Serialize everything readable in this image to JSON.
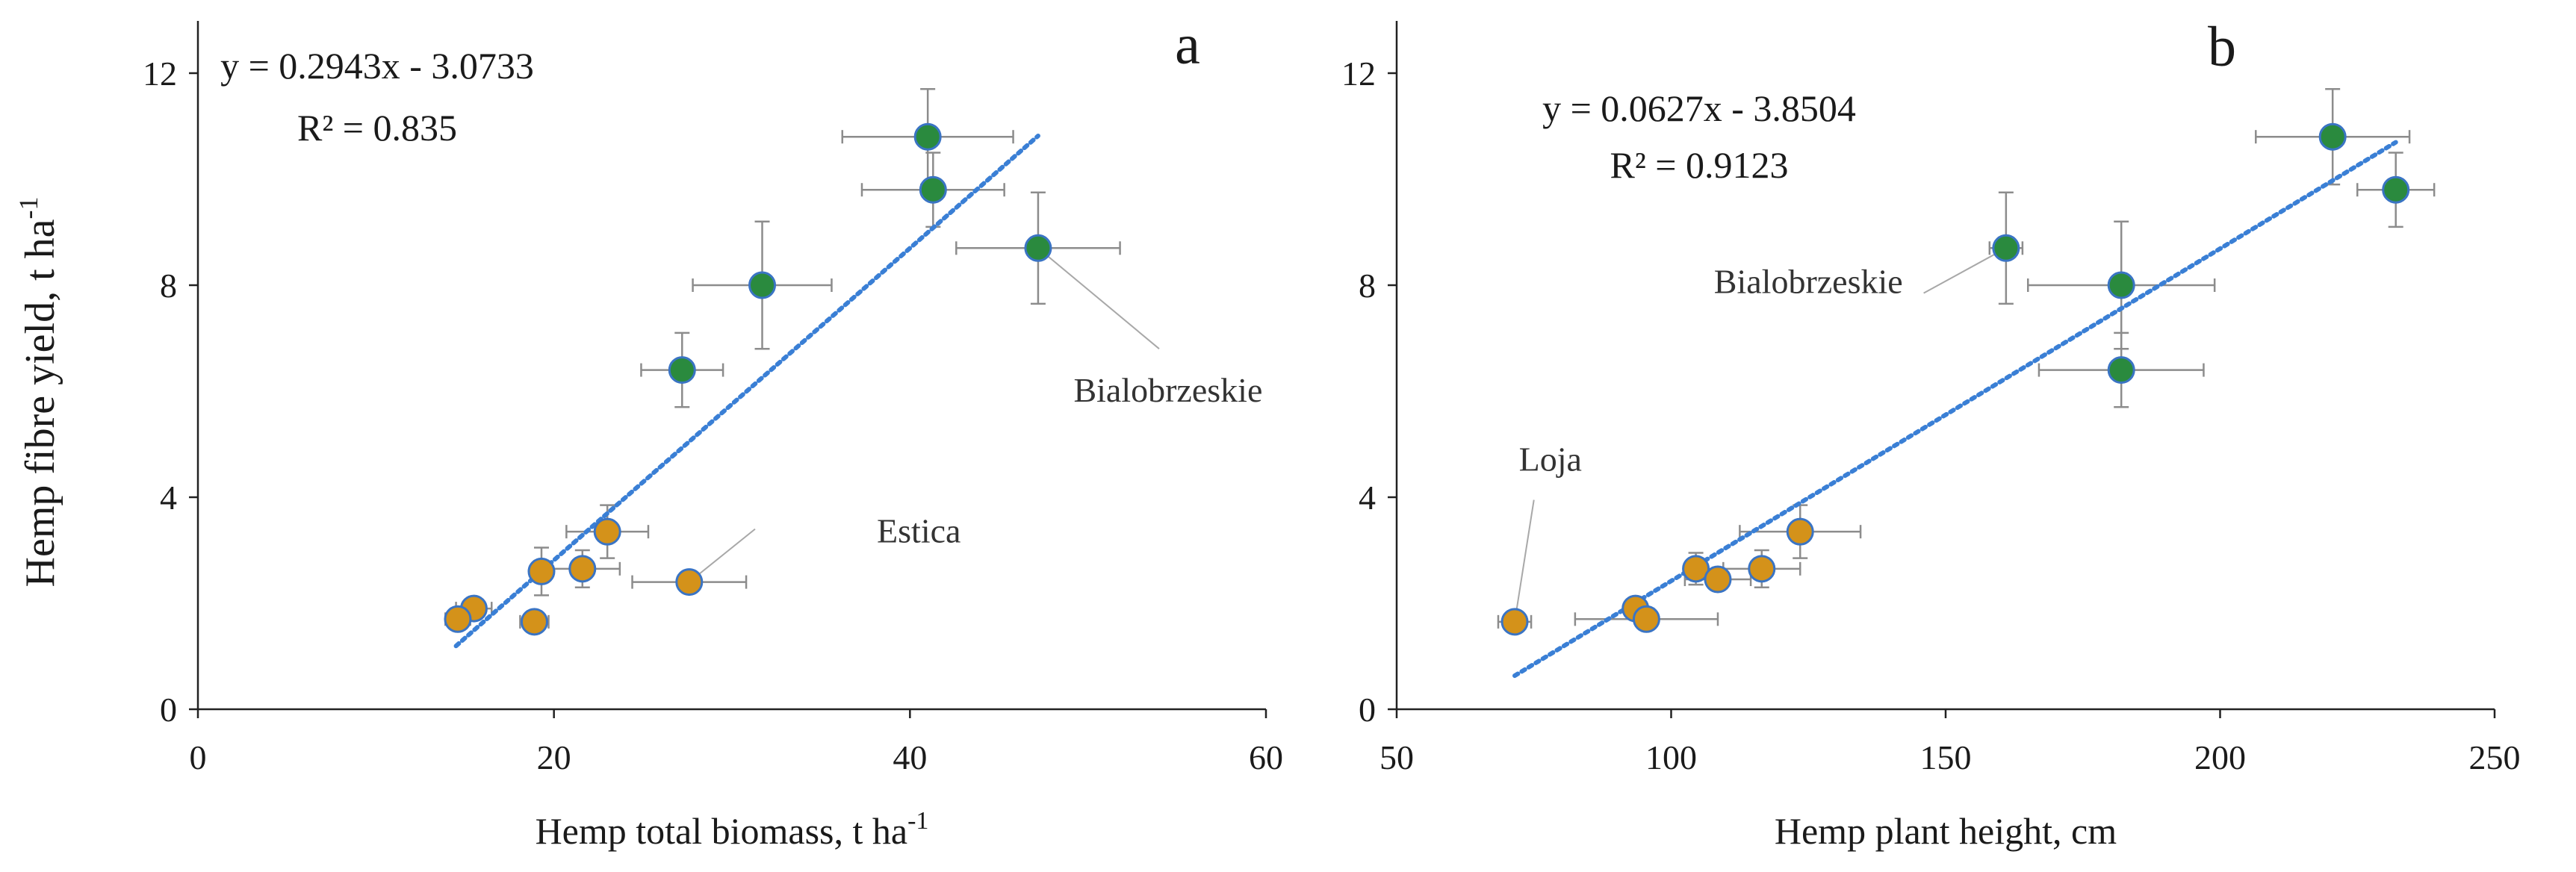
{
  "figure": {
    "ylabel_main": "Hemp fibre yield, t ha",
    "ylabel_sup": "-1"
  },
  "colors": {
    "green_marker": "#2a8a3e",
    "orange_marker": "#d4921a",
    "marker_edge": "#3a74c4",
    "trendline": "#3a7fd5",
    "errorbar": "#8c8c8c",
    "axis": "#222222",
    "annotation_line": "#a8a8a8"
  },
  "chart_data": [
    {
      "id": "a",
      "type": "scatter",
      "panel_letter": "a",
      "xlabel": "Hemp total biomass, t ha",
      "xlabel_sup": "-1",
      "ylabel": "Hemp fibre yield, t ha-1",
      "xlim": [
        0,
        60
      ],
      "ylim": [
        0,
        13
      ],
      "xticks": [
        "0",
        "20",
        "40",
        "60"
      ],
      "yticks": [
        "0",
        "4",
        "8",
        "12"
      ],
      "xtick_values": [
        0,
        20,
        40,
        60
      ],
      "ytick_values": [
        0,
        4,
        8,
        12
      ],
      "equation": "y = 0.2943x - 3.0733",
      "r2_label": "R² = 0.835",
      "trendline": {
        "slope": 0.2943,
        "intercept": -3.0733,
        "x_range": [
          14.5,
          47.2
        ]
      },
      "points": [
        {
          "x": 41.0,
          "y": 10.8,
          "xerr": 4.8,
          "yerr": 0.9,
          "group": "green"
        },
        {
          "x": 41.3,
          "y": 9.8,
          "xerr": 4.0,
          "yerr": 0.7,
          "group": "green"
        },
        {
          "x": 47.2,
          "y": 8.7,
          "xerr": 4.6,
          "yerr": 1.05,
          "group": "green"
        },
        {
          "x": 31.7,
          "y": 8.0,
          "xerr": 3.9,
          "yerr": 1.2,
          "group": "green"
        },
        {
          "x": 27.2,
          "y": 6.4,
          "xerr": 2.3,
          "yerr": 0.7,
          "group": "green"
        },
        {
          "x": 23.0,
          "y": 3.35,
          "xerr": 2.3,
          "yerr": 0.5,
          "group": "orange"
        },
        {
          "x": 21.6,
          "y": 2.65,
          "xerr": 2.1,
          "yerr": 0.35,
          "group": "orange"
        },
        {
          "x": 19.3,
          "y": 2.6,
          "xerr": 0.6,
          "yerr": 0.45,
          "group": "orange"
        },
        {
          "x": 27.6,
          "y": 2.4,
          "xerr": 3.2,
          "yerr": 0.2,
          "group": "orange"
        },
        {
          "x": 15.5,
          "y": 1.9,
          "xerr": 1.0,
          "yerr": 0.2,
          "group": "orange"
        },
        {
          "x": 14.6,
          "y": 1.7,
          "xerr": 0.7,
          "yerr": 0.2,
          "group": "orange"
        },
        {
          "x": 18.9,
          "y": 1.65,
          "xerr": 0.8,
          "yerr": 0.15,
          "group": "orange"
        }
      ],
      "annotations": [
        {
          "text": "Bialobrzeskie",
          "point_index": 2,
          "label_x": 54.5,
          "label_y": 5.8,
          "anchor_x": 54.0,
          "anchor_y": 6.8
        },
        {
          "text": "Estica",
          "point_index": 8,
          "label_x": 40.5,
          "label_y": 3.15,
          "anchor_x": 31.3,
          "anchor_y": 3.4
        }
      ]
    },
    {
      "id": "b",
      "type": "scatter",
      "panel_letter": "b",
      "xlabel": "Hemp plant height, cm",
      "xlabel_sup": "",
      "ylabel": "Hemp fibre yield, t ha-1",
      "xlim": [
        50,
        250
      ],
      "ylim": [
        0,
        13
      ],
      "xticks": [
        "50",
        "100",
        "150",
        "200",
        "250"
      ],
      "yticks": [
        "0",
        "4",
        "8",
        "12"
      ],
      "xtick_values": [
        50,
        100,
        150,
        200,
        250
      ],
      "ytick_values": [
        0,
        4,
        8,
        12
      ],
      "equation": "y = 0.0627x - 3.8504",
      "r2_label": "R² = 0.9123",
      "trendline": {
        "slope": 0.0627,
        "intercept": -3.8504,
        "x_range": [
          71.5,
          232
        ]
      },
      "points": [
        {
          "x": 220.5,
          "y": 10.8,
          "xerr": 14,
          "yerr": 0.9,
          "group": "green"
        },
        {
          "x": 232.0,
          "y": 9.8,
          "xerr": 7,
          "yerr": 0.7,
          "group": "green"
        },
        {
          "x": 161.0,
          "y": 8.7,
          "xerr": 3,
          "yerr": 1.05,
          "group": "green"
        },
        {
          "x": 182.0,
          "y": 8.0,
          "xerr": 17,
          "yerr": 1.2,
          "group": "green"
        },
        {
          "x": 182.0,
          "y": 6.4,
          "xerr": 15,
          "yerr": 0.7,
          "group": "green"
        },
        {
          "x": 123.5,
          "y": 3.35,
          "xerr": 11,
          "yerr": 0.5,
          "group": "orange"
        },
        {
          "x": 116.5,
          "y": 2.65,
          "xerr": 7,
          "yerr": 0.35,
          "group": "orange"
        },
        {
          "x": 104.5,
          "y": 2.65,
          "xerr": 1.5,
          "yerr": 0.3,
          "group": "orange"
        },
        {
          "x": 108.5,
          "y": 2.45,
          "xerr": 6,
          "yerr": 0.2,
          "group": "orange"
        },
        {
          "x": 93.5,
          "y": 1.9,
          "xerr": 2,
          "yerr": 0.15,
          "group": "orange"
        },
        {
          "x": 95.5,
          "y": 1.7,
          "xerr": 13,
          "yerr": 0.15,
          "group": "orange"
        },
        {
          "x": 71.5,
          "y": 1.65,
          "xerr": 3,
          "yerr": 0.15,
          "group": "orange"
        }
      ],
      "annotations": [
        {
          "text": "Bialobrzeskie",
          "point_index": 2,
          "label_x": 125.0,
          "label_y": 7.85,
          "anchor_x": 146.0,
          "anchor_y": 7.85
        },
        {
          "text": "Loja",
          "point_index": 11,
          "label_x": 78.0,
          "label_y": 4.5,
          "anchor_x": 75.0,
          "anchor_y": 3.95
        }
      ]
    }
  ]
}
